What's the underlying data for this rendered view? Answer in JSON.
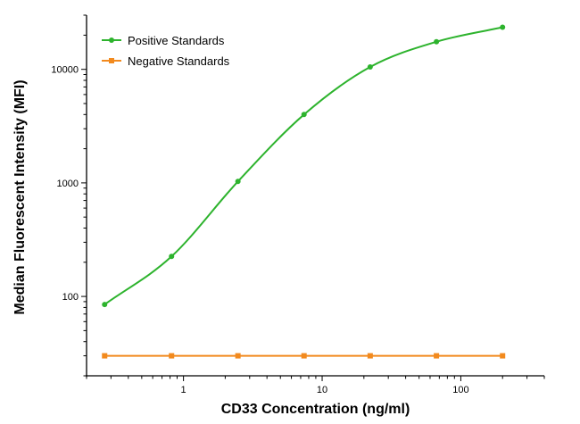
{
  "chart_data": {
    "type": "line",
    "xlabel": "CD33 Concentration (ng/ml)",
    "ylabel": "Median Fluorescent Intensity (MFI)",
    "x_scale": "log",
    "y_scale": "log",
    "xlim": [
      0.2,
      400
    ],
    "ylim": [
      20,
      30000
    ],
    "x_ticks": [
      1,
      10,
      100
    ],
    "x_tick_labels": [
      "1",
      "10",
      "100"
    ],
    "y_ticks": [
      100,
      1000,
      10000
    ],
    "y_tick_labels": [
      "100",
      "1000",
      "10000"
    ],
    "grid": false,
    "legend": "top-left",
    "series": [
      {
        "name": "Positive Standards",
        "color": "#2db32d",
        "marker": "circle",
        "curve": "smooth",
        "x": [
          0.27,
          0.82,
          2.47,
          7.4,
          22.2,
          66.7,
          200
        ],
        "y": [
          85,
          225,
          1030,
          4000,
          10500,
          17500,
          23500
        ]
      },
      {
        "name": "Negative Standards",
        "color": "#f28a1e",
        "marker": "square",
        "curve": "straight",
        "x": [
          0.27,
          0.82,
          2.47,
          7.4,
          22.2,
          66.7,
          200
        ],
        "y": [
          30,
          30,
          30,
          30,
          30,
          30,
          30
        ]
      }
    ]
  }
}
